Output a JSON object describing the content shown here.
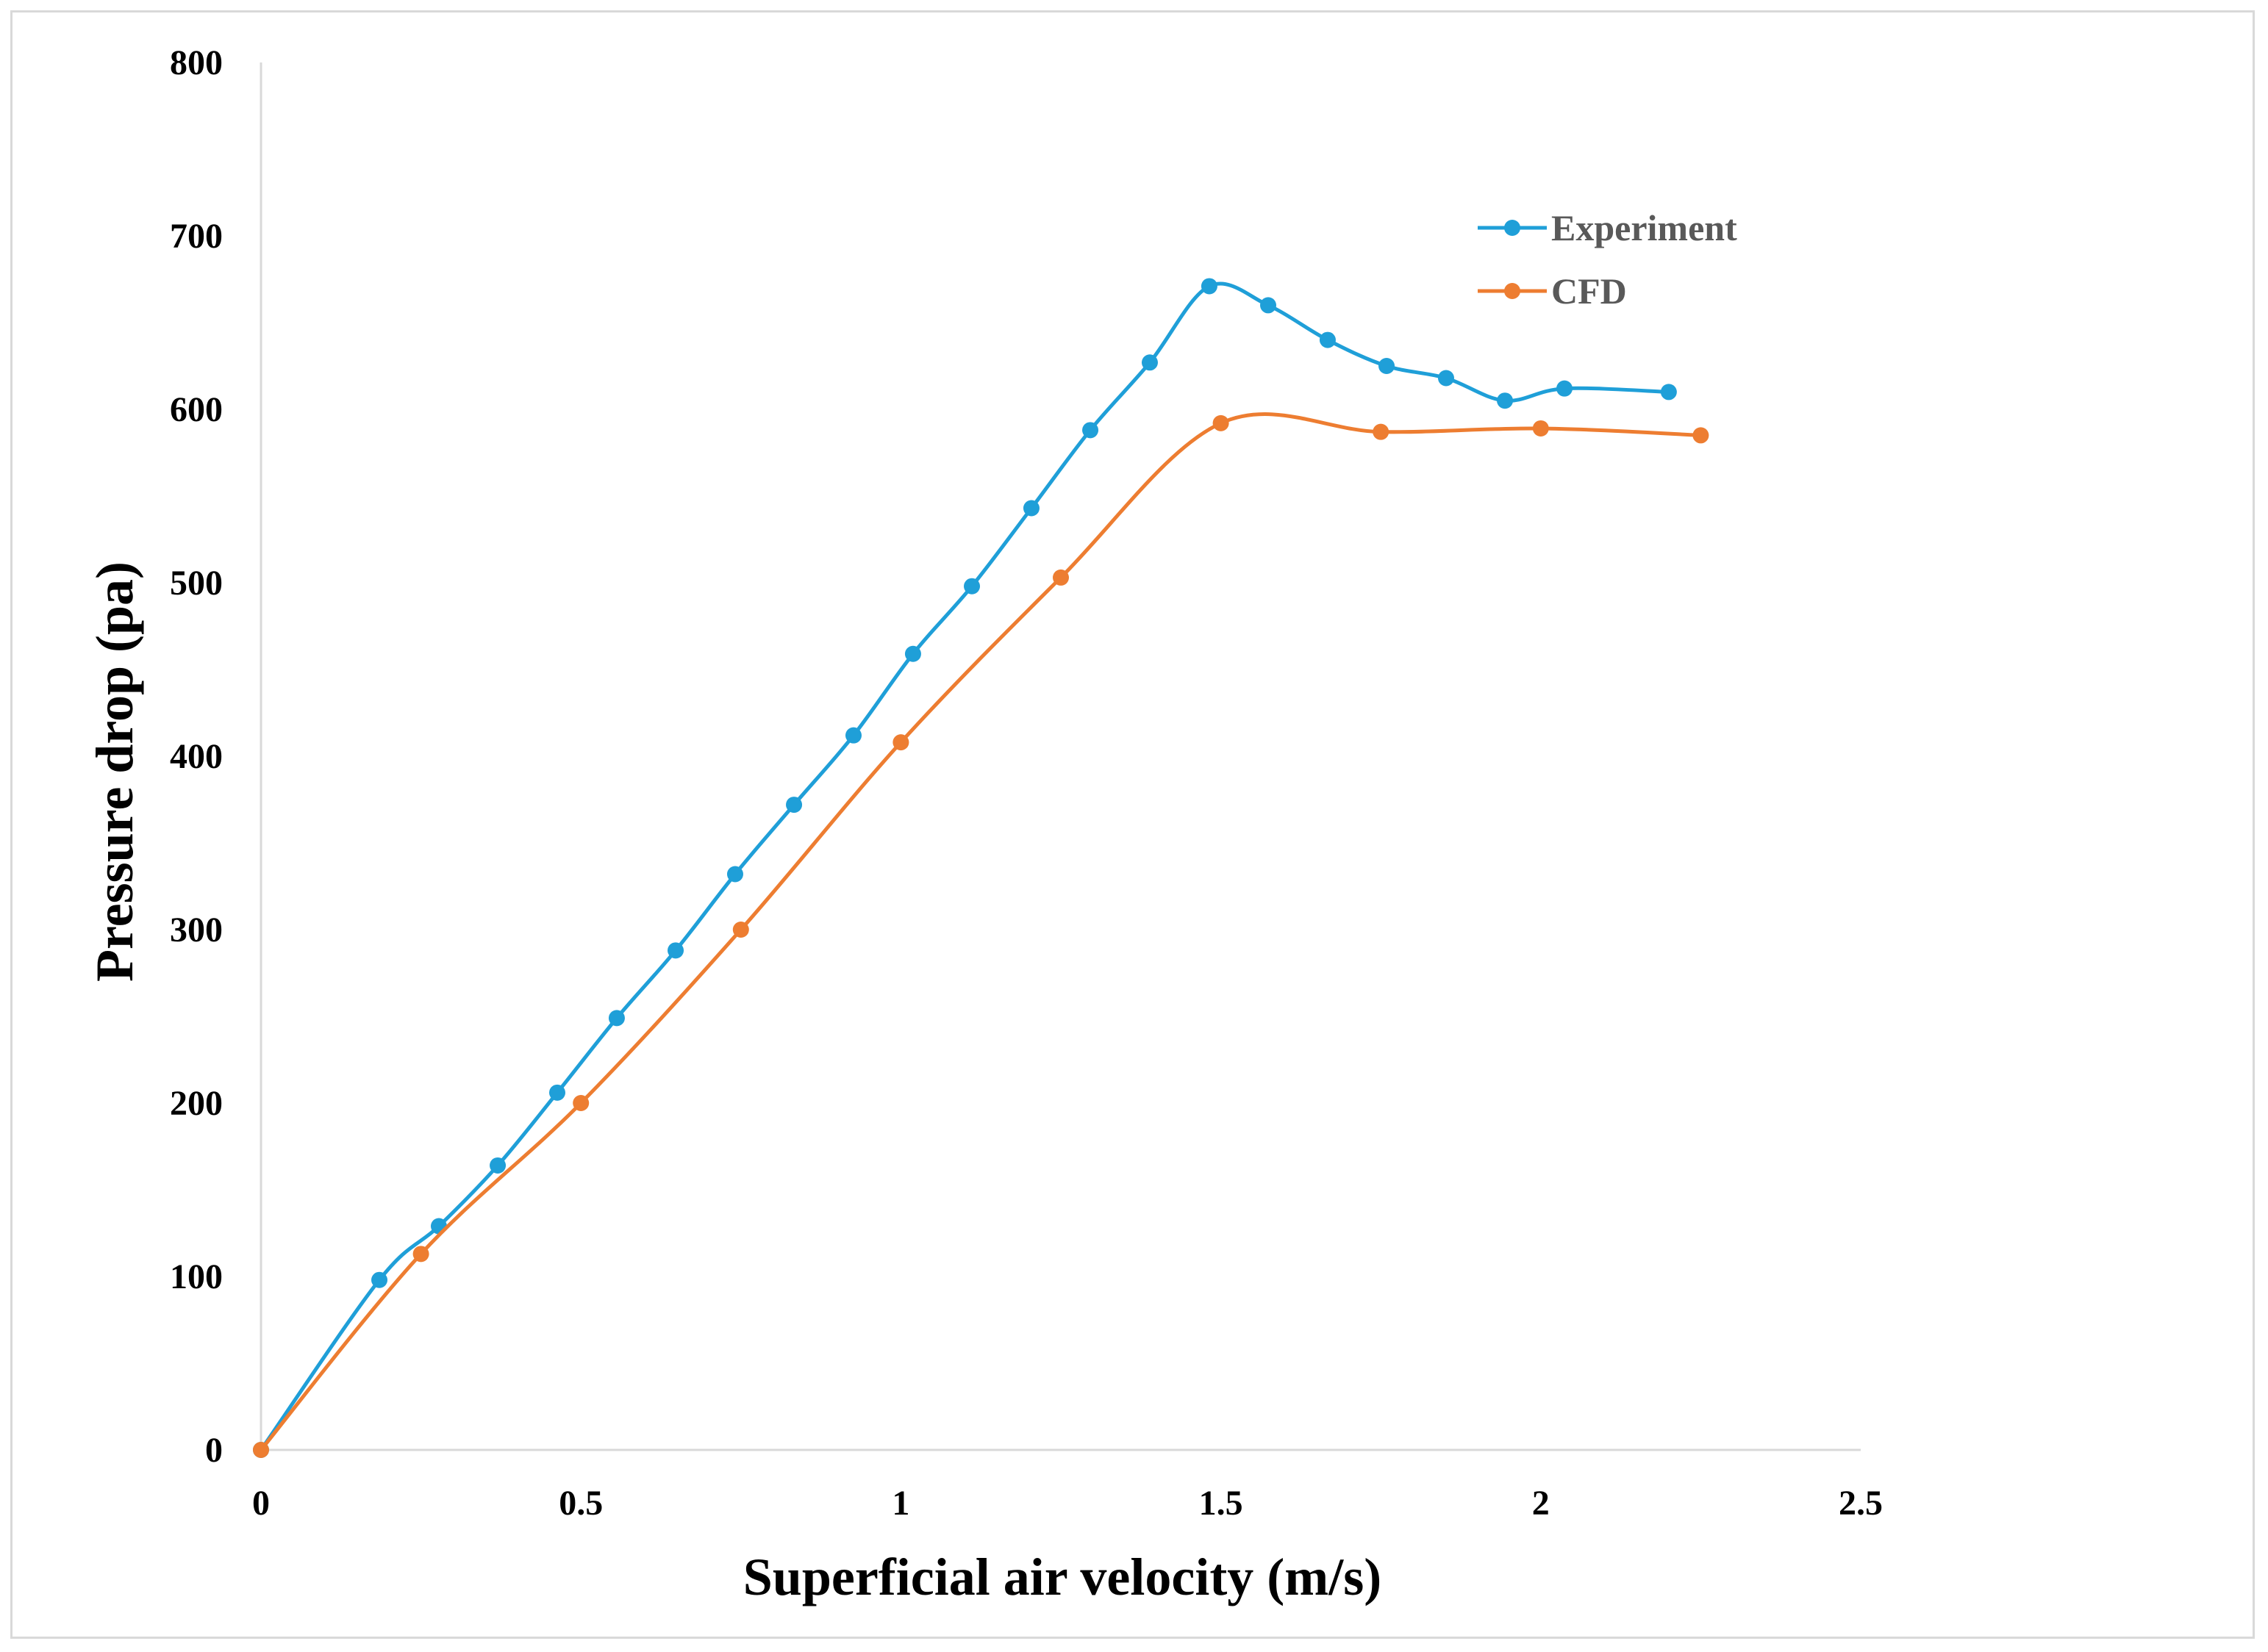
{
  "chart_data": {
    "type": "line",
    "title": "",
    "xlabel": "Superficial air velocity (m/s)",
    "ylabel": "Pressure drop (pa)",
    "xlim": [
      0,
      2.5
    ],
    "ylim": [
      0,
      800
    ],
    "xticks": [
      0,
      0.5,
      1,
      1.5,
      2,
      2.5
    ],
    "xtick_labels": [
      "0",
      "0.5",
      "1",
      "1.5",
      "2",
      "2.5"
    ],
    "yticks": [
      0,
      100,
      200,
      300,
      400,
      500,
      600,
      700,
      800
    ],
    "ytick_labels": [
      "0",
      "100",
      "200",
      "300",
      "400",
      "500",
      "600",
      "700",
      "800"
    ],
    "grid": false,
    "legend_position": "top-right",
    "series": [
      {
        "name": "Experiment",
        "color": "#1f9fd8",
        "x": [
          0,
          0.185,
          0.278,
          0.37,
          0.463,
          0.556,
          0.648,
          0.741,
          0.833,
          0.926,
          1.019,
          1.111,
          1.204,
          1.296,
          1.389,
          1.482,
          1.574,
          1.667,
          1.759,
          1.852,
          1.944,
          2.037,
          2.2
        ],
        "y": [
          0,
          98,
          129,
          164,
          206,
          249,
          288,
          332,
          372,
          412,
          459,
          498,
          543,
          588,
          627,
          671,
          660,
          640,
          625,
          618,
          605,
          612,
          610
        ]
      },
      {
        "name": "CFD",
        "color": "#ed7d31",
        "x": [
          0,
          0.25,
          0.5,
          0.75,
          1.0,
          1.25,
          1.5,
          1.75,
          2.0,
          2.25
        ],
        "y": [
          0,
          113,
          200,
          300,
          408,
          503,
          592,
          587,
          589,
          585
        ]
      }
    ]
  }
}
